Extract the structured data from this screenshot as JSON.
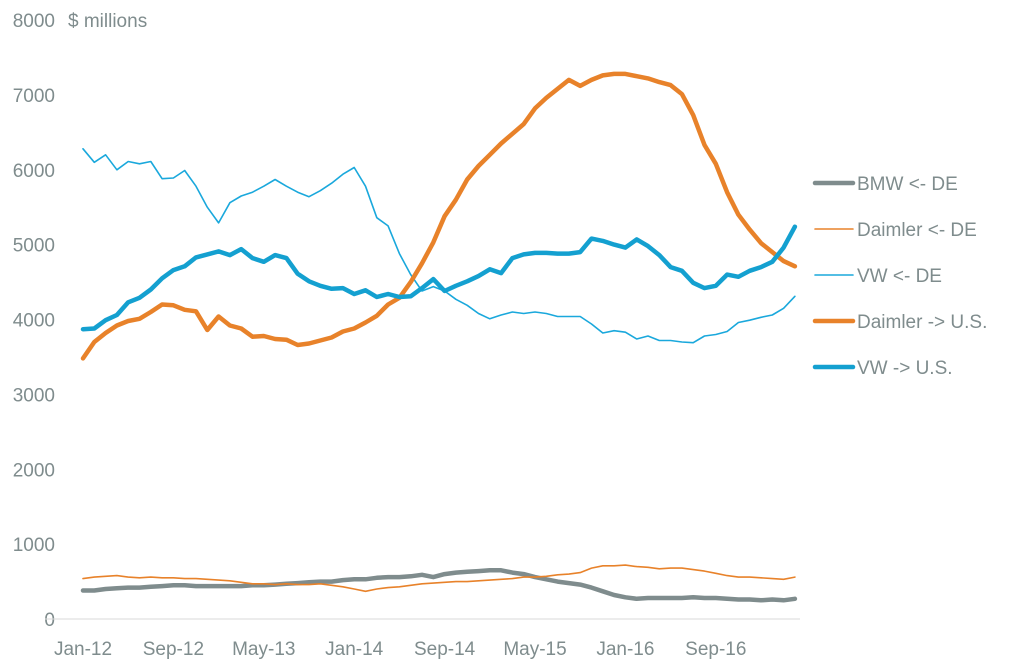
{
  "chart_data": {
    "type": "line",
    "title": "",
    "ylabel": "$ millions",
    "xlabel": "",
    "ylim": [
      0,
      8000
    ],
    "yticks": [
      0,
      1000,
      2000,
      3000,
      4000,
      5000,
      6000,
      7000,
      8000
    ],
    "x_start": "Jan-12",
    "x_end": "Apr-17",
    "x_frequency": "monthly",
    "xtick_labels": [
      {
        "label": "Jan-12",
        "index": 0
      },
      {
        "label": "Sep-12",
        "index": 8
      },
      {
        "label": "May-13",
        "index": 16
      },
      {
        "label": "Jan-14",
        "index": 24
      },
      {
        "label": "Sep-14",
        "index": 32
      },
      {
        "label": "May-15",
        "index": 40
      },
      {
        "label": "Jan-16",
        "index": 48
      },
      {
        "label": "Sep-16",
        "index": 56
      }
    ],
    "grid": false,
    "legend_position": "right",
    "series": [
      {
        "name": "BMW <- DE",
        "color": "#7f8c8d",
        "weight": "thick",
        "values": [
          380,
          380,
          400,
          410,
          420,
          420,
          430,
          440,
          450,
          450,
          440,
          440,
          440,
          440,
          440,
          450,
          450,
          460,
          470,
          480,
          490,
          500,
          500,
          520,
          530,
          530,
          550,
          560,
          560,
          570,
          590,
          560,
          600,
          620,
          630,
          640,
          650,
          650,
          620,
          600,
          560,
          530,
          500,
          480,
          460,
          420,
          370,
          320,
          290,
          270,
          280,
          280,
          280,
          280,
          290,
          280,
          280,
          270,
          260,
          260,
          250,
          260,
          250,
          270
        ]
      },
      {
        "name": "Daimler <- DE",
        "color": "#e8822a",
        "weight": "thin",
        "values": [
          540,
          560,
          570,
          580,
          560,
          550,
          560,
          550,
          550,
          540,
          540,
          530,
          520,
          510,
          490,
          470,
          470,
          460,
          470,
          460,
          460,
          470,
          450,
          430,
          400,
          370,
          400,
          420,
          430,
          450,
          470,
          480,
          490,
          500,
          500,
          510,
          520,
          530,
          540,
          560,
          560,
          570,
          590,
          600,
          620,
          680,
          710,
          710,
          720,
          700,
          690,
          670,
          680,
          680,
          660,
          640,
          610,
          580,
          560,
          560,
          550,
          540,
          530,
          560
        ]
      },
      {
        "name": "VW <- DE",
        "color": "#1aa8dc",
        "weight": "thin",
        "values": [
          6280,
          6100,
          6200,
          6000,
          6110,
          6080,
          6110,
          5880,
          5890,
          5990,
          5780,
          5500,
          5290,
          5560,
          5650,
          5700,
          5780,
          5870,
          5780,
          5700,
          5640,
          5720,
          5820,
          5940,
          6030,
          5780,
          5360,
          5250,
          4880,
          4600,
          4380,
          4440,
          4380,
          4270,
          4190,
          4080,
          4010,
          4060,
          4100,
          4080,
          4100,
          4080,
          4040,
          4040,
          4040,
          3940,
          3820,
          3850,
          3830,
          3740,
          3780,
          3720,
          3720,
          3700,
          3690,
          3780,
          3800,
          3840,
          3960,
          3990,
          4030,
          4060,
          4150,
          4310
        ]
      },
      {
        "name": "Daimler -> U.S.",
        "color": "#e8822a",
        "weight": "thick",
        "values": [
          3480,
          3700,
          3820,
          3920,
          3980,
          4010,
          4100,
          4200,
          4190,
          4130,
          4110,
          3860,
          4040,
          3920,
          3880,
          3770,
          3780,
          3740,
          3730,
          3660,
          3680,
          3720,
          3760,
          3840,
          3880,
          3960,
          4050,
          4200,
          4290,
          4500,
          4750,
          5030,
          5380,
          5600,
          5870,
          6050,
          6200,
          6350,
          6480,
          6610,
          6820,
          6960,
          7080,
          7200,
          7120,
          7200,
          7260,
          7280,
          7280,
          7250,
          7220,
          7170,
          7130,
          7010,
          6730,
          6330,
          6080,
          5700,
          5400,
          5200,
          5020,
          4900,
          4780,
          4710
        ]
      },
      {
        "name": "VW -> U.S.",
        "color": "#14a0d0",
        "weight": "thick",
        "values": [
          3870,
          3880,
          3990,
          4060,
          4230,
          4290,
          4400,
          4550,
          4660,
          4710,
          4830,
          4870,
          4910,
          4860,
          4940,
          4820,
          4770,
          4860,
          4820,
          4610,
          4510,
          4450,
          4410,
          4420,
          4340,
          4390,
          4300,
          4340,
          4300,
          4310,
          4420,
          4540,
          4380,
          4450,
          4510,
          4580,
          4670,
          4620,
          4820,
          4870,
          4890,
          4890,
          4880,
          4880,
          4900,
          5080,
          5050,
          5000,
          4960,
          5070,
          4980,
          4860,
          4700,
          4650,
          4490,
          4420,
          4450,
          4600,
          4570,
          4650,
          4700,
          4770,
          4960,
          5240
        ]
      }
    ]
  }
}
